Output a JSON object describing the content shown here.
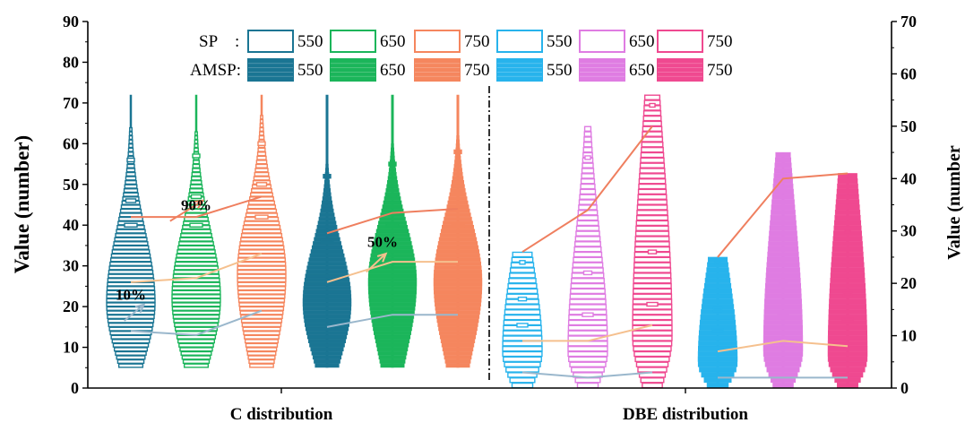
{
  "chart_data": {
    "type": "violin",
    "xlabel_left": "C distribution",
    "xlabel_right": "DBE distribution",
    "ylabel_left": "Value (number)",
    "ylabel_right": "Value (number",
    "y_left": {
      "min": 0,
      "max": 90,
      "ticks": [
        0,
        10,
        20,
        30,
        40,
        50,
        60,
        70,
        80,
        90
      ]
    },
    "y_right": {
      "min": 0,
      "max": 70,
      "ticks": [
        0,
        10,
        20,
        30,
        40,
        50,
        60,
        70
      ]
    },
    "legend": {
      "rows": [
        {
          "label": "SP",
          "sep": ":"
        },
        {
          "label": "AMSP:",
          "sep": ""
        }
      ],
      "items": [
        {
          "text": "550",
          "color": "#1a7593"
        },
        {
          "text": "650",
          "color": "#1bb55a"
        },
        {
          "text": "750",
          "color": "#f5865e"
        },
        {
          "text": "550",
          "color": "#27b3ec"
        },
        {
          "text": "650",
          "color": "#df7ce2"
        },
        {
          "text": "750",
          "color": "#ef4990"
        }
      ]
    },
    "groups": [
      {
        "panel": "C",
        "method": "SP",
        "temp": "550",
        "color": "#1a7593",
        "filled": false,
        "min": 5,
        "max": 72,
        "p10": 14,
        "p50": 26,
        "p90": 42,
        "tails": [
          40,
          46,
          56
        ]
      },
      {
        "panel": "C",
        "method": "SP",
        "temp": "650",
        "color": "#1bb55a",
        "filled": false,
        "min": 5,
        "max": 72,
        "p10": 13,
        "p50": 27,
        "p90": 42,
        "tails": [
          40,
          47,
          57
        ]
      },
      {
        "panel": "C",
        "method": "SP",
        "temp": "750",
        "color": "#f5865e",
        "filled": false,
        "min": 5,
        "max": 72,
        "p10": 19,
        "p50": 33,
        "p90": 47,
        "tails": [
          42,
          50,
          60
        ]
      },
      {
        "panel": "C",
        "method": "AMSP",
        "temp": "550",
        "color": "#1a7593",
        "filled": true,
        "min": 5,
        "max": 72,
        "p10": 15,
        "p50": 26,
        "p90": 38,
        "tails": [
          36,
          44,
          52
        ]
      },
      {
        "panel": "C",
        "method": "AMSP",
        "temp": "650",
        "color": "#1bb55a",
        "filled": true,
        "min": 5,
        "max": 72,
        "p10": 18,
        "p50": 31,
        "p90": 43,
        "tails": [
          40,
          47,
          55
        ]
      },
      {
        "panel": "C",
        "method": "AMSP",
        "temp": "750",
        "color": "#f5865e",
        "filled": true,
        "min": 5,
        "max": 72,
        "p10": 18,
        "p50": 31,
        "p90": 44,
        "tails": [
          40,
          48,
          58
        ]
      },
      {
        "panel": "DBE",
        "method": "SP",
        "temp": "550",
        "color": "#27b3ec",
        "filled": false,
        "min": 0,
        "max": 26,
        "p10": 3,
        "p50": 9,
        "p90": 26,
        "tails": [
          12,
          17,
          24
        ]
      },
      {
        "panel": "DBE",
        "method": "SP",
        "temp": "650",
        "color": "#df7ce2",
        "filled": false,
        "min": 0,
        "max": 50,
        "p10": 2,
        "p50": 9,
        "p90": 34,
        "tails": [
          14,
          22,
          44
        ]
      },
      {
        "panel": "DBE",
        "method": "SP",
        "temp": "750",
        "color": "#ef4990",
        "filled": false,
        "min": 0,
        "max": 56,
        "p10": 3,
        "p50": 12,
        "p90": 50,
        "tails": [
          16,
          26,
          54
        ]
      },
      {
        "panel": "DBE",
        "method": "AMSP",
        "temp": "550",
        "color": "#27b3ec",
        "filled": true,
        "min": 0,
        "max": 25,
        "p10": 2,
        "p50": 7,
        "p90": 25,
        "tails": [
          11,
          15,
          24
        ]
      },
      {
        "panel": "DBE",
        "method": "AMSP",
        "temp": "650",
        "color": "#df7ce2",
        "filled": true,
        "min": 0,
        "max": 45,
        "p10": 2,
        "p50": 9,
        "p90": 40,
        "tails": [
          14,
          20,
          38
        ]
      },
      {
        "panel": "DBE",
        "method": "AMSP",
        "temp": "750",
        "color": "#ef4990",
        "filled": true,
        "min": 0,
        "max": 41,
        "p10": 2,
        "p50": 8,
        "p90": 41,
        "tails": [
          13,
          18,
          30
        ]
      }
    ],
    "percentile_lines": [
      {
        "label": "10%",
        "color": "#9ab7cc"
      },
      {
        "label": "50%",
        "color": "#f5c08e"
      },
      {
        "label": "90%",
        "color": "#ef7f5f"
      }
    ],
    "annotations": [
      {
        "text": "90%",
        "x": 2,
        "y": 45,
        "arrow_from": [
          1.6,
          41
        ],
        "arrow_to": [
          2.1,
          46
        ]
      },
      {
        "text": "50%",
        "x": 4.85,
        "y": 36,
        "arrow_from": [
          4.6,
          28.5
        ],
        "arrow_to": [
          4.9,
          33
        ]
      },
      {
        "text": "10%",
        "x": 1.0,
        "y": 23,
        "arrow_from": [
          0.9,
          16.5
        ],
        "arrow_to": [
          1.2,
          20.5
        ]
      }
    ]
  }
}
